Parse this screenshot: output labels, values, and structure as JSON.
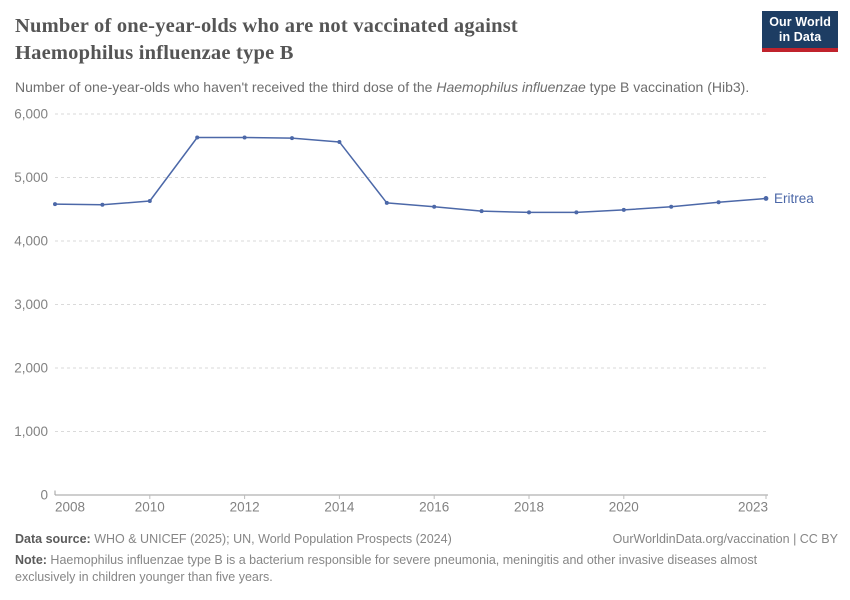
{
  "header": {
    "title_line1": "Number of one-year-olds who are not vaccinated against",
    "title_line2": "Haemophilus influenzae type B",
    "subtitle_part1": "Number of one-year-olds who haven't received the third dose of the ",
    "subtitle_italic": "Haemophilus influenzae",
    "subtitle_part2": " type B vaccination (Hib3).",
    "logo_line1": "Our World",
    "logo_line2": "in Data",
    "logo_bg_color": "#1d3d63",
    "logo_accent_color": "#c0232c"
  },
  "chart_data": {
    "type": "line",
    "title": "Number of one-year-olds who are not vaccinated against Haemophilus influenzae type B",
    "x": [
      2008,
      2009,
      2010,
      2011,
      2012,
      2013,
      2014,
      2015,
      2016,
      2017,
      2018,
      2019,
      2020,
      2021,
      2022,
      2023
    ],
    "series": [
      {
        "name": "Eritrea",
        "color": "#4c68a8",
        "values": [
          4580,
          4570,
          4630,
          5630,
          5630,
          5620,
          5560,
          4600,
          4540,
          4470,
          4450,
          4450,
          4490,
          4540,
          4610,
          4670
        ]
      }
    ],
    "xlim": [
      2008,
      2023
    ],
    "ylim": [
      0,
      6000
    ],
    "x_ticks": [
      2008,
      2010,
      2012,
      2014,
      2016,
      2018,
      2020,
      2023
    ],
    "x_tick_labels": [
      "2008",
      "2010",
      "2012",
      "2014",
      "2016",
      "2018",
      "2020",
      "2023"
    ],
    "y_ticks": [
      0,
      1000,
      2000,
      3000,
      4000,
      5000,
      6000
    ],
    "y_tick_labels": [
      "0",
      "1,000",
      "2,000",
      "3,000",
      "4,000",
      "5,000",
      "6,000"
    ],
    "grid": "horizontal-dashed",
    "legend": "line-end-label",
    "gridline_color": "#dadada",
    "axis_line_color": "#9e9e9e",
    "tick_label_color": "#828282"
  },
  "footer": {
    "datasource_label": "Data source:",
    "datasource_text": " WHO & UNICEF (2025); UN, World Population Prospects (2024)",
    "attribution": "OurWorldinData.org/vaccination | CC BY",
    "note_label": "Note:",
    "note_text": " Haemophilus influenzae type B is a bacterium responsible for severe pneumonia, meningitis and other invasive diseases almost exclusively in children younger than five years."
  }
}
